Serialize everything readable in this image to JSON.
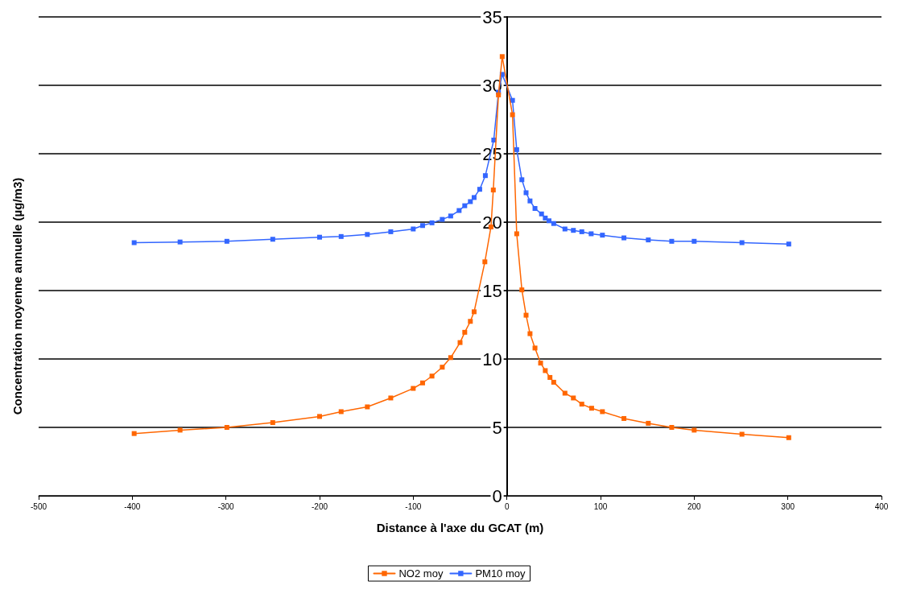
{
  "chart_data": {
    "type": "line",
    "xlabel": "Distance à l'axe du GCAT (m)",
    "ylabel": "Concentration moyenne annuelle (µg/m3)",
    "xlim": [
      -500,
      400
    ],
    "xticks": [
      -500,
      -400,
      -300,
      -200,
      -100,
      0,
      100,
      200,
      300,
      400
    ],
    "ylim": [
      0,
      35
    ],
    "yticks": [
      0,
      5,
      10,
      15,
      20,
      25,
      30,
      35
    ],
    "grid": "y",
    "legend": "bottom",
    "marker": "square",
    "line_style": "solid",
    "series": [
      {
        "name": "NO2 moy",
        "color": "#ff6600",
        "x": [
          -398,
          -349,
          -299,
          -250,
          -200,
          -177,
          -149,
          -124,
          -100,
          -90,
          -80,
          -69,
          -60,
          -50,
          -45,
          -39,
          -35,
          -23.5,
          -17,
          -14.5,
          -9,
          -5,
          6,
          10.5,
          16,
          20.5,
          24.7,
          30,
          36,
          41,
          46,
          50,
          62,
          71,
          80,
          90.5,
          102,
          125,
          151,
          176,
          200,
          251,
          301
        ],
        "values": [
          4.55,
          4.8,
          5.0,
          5.35,
          5.8,
          6.15,
          6.5,
          7.15,
          7.85,
          8.25,
          8.75,
          9.4,
          10.1,
          11.2,
          11.95,
          12.75,
          13.45,
          17.1,
          19.65,
          22.35,
          29.3,
          32.1,
          27.85,
          19.15,
          15.05,
          13.2,
          11.85,
          10.8,
          9.7,
          9.15,
          8.65,
          8.3,
          7.5,
          7.15,
          6.7,
          6.4,
          6.15,
          5.65,
          5.3,
          5.0,
          4.8,
          4.5,
          4.25
        ]
      },
      {
        "name": "PM10 moy",
        "color": "#3366ff",
        "x": [
          -398,
          -349,
          -299,
          -250,
          -200,
          -177,
          -149,
          -124,
          -100,
          -90,
          -80,
          -69,
          -60,
          -51,
          -45,
          -39,
          -35,
          -29,
          -23,
          -14,
          -9,
          -5,
          6,
          10.5,
          16,
          20.5,
          24.7,
          30,
          37,
          41,
          45,
          50,
          62,
          71,
          80,
          90,
          102,
          125,
          151,
          176,
          200,
          251,
          301
        ],
        "values": [
          18.5,
          18.55,
          18.6,
          18.75,
          18.9,
          18.95,
          19.1,
          19.3,
          19.5,
          19.75,
          19.95,
          20.2,
          20.45,
          20.85,
          21.2,
          21.5,
          21.8,
          22.4,
          23.4,
          26.0,
          29.5,
          30.8,
          28.9,
          25.3,
          23.1,
          22.15,
          21.55,
          21.0,
          20.6,
          20.3,
          20.1,
          19.9,
          19.5,
          19.4,
          19.3,
          19.15,
          19.05,
          18.85,
          18.7,
          18.6,
          18.6,
          18.5,
          18.4
        ]
      }
    ]
  }
}
